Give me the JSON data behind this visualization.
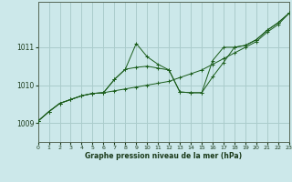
{
  "xlabel": "Graphe pression niveau de la mer (hPa)",
  "bg_color": "#cce8ea",
  "grid_color": "#aacccc",
  "line_color": "#1a5c1a",
  "xlim": [
    0,
    23
  ],
  "ylim": [
    1008.5,
    1012.2
  ],
  "yticks": [
    1009,
    1010,
    1011
  ],
  "xticks": [
    0,
    1,
    2,
    3,
    4,
    5,
    6,
    7,
    8,
    9,
    10,
    11,
    12,
    13,
    14,
    15,
    16,
    17,
    18,
    19,
    20,
    21,
    22,
    23
  ],
  "series1_x": [
    0,
    1,
    2,
    3,
    4,
    5,
    6,
    7,
    8,
    9,
    10,
    11,
    12,
    13,
    14,
    15,
    16,
    17,
    18,
    19,
    20,
    21,
    22,
    23
  ],
  "series1_y": [
    1009.05,
    1009.3,
    1009.52,
    1009.62,
    1009.72,
    1009.78,
    1009.8,
    1009.85,
    1009.9,
    1009.95,
    1010.0,
    1010.05,
    1010.1,
    1010.2,
    1010.3,
    1010.4,
    1010.55,
    1010.7,
    1010.85,
    1011.0,
    1011.15,
    1011.4,
    1011.6,
    1011.9
  ],
  "series2_x": [
    0,
    1,
    2,
    3,
    4,
    5,
    6,
    7,
    8,
    9,
    10,
    11,
    12,
    13,
    14,
    15,
    16,
    17,
    18,
    19,
    20,
    21,
    22,
    23
  ],
  "series2_y": [
    1009.05,
    1009.3,
    1009.52,
    1009.62,
    1009.72,
    1009.78,
    1009.8,
    1010.15,
    1010.42,
    1010.47,
    1010.5,
    1010.45,
    1010.4,
    1009.82,
    1009.8,
    1009.8,
    1010.22,
    1010.6,
    1011.0,
    1011.05,
    1011.2,
    1011.45,
    1011.65,
    1011.9
  ],
  "series3_x": [
    0,
    1,
    2,
    3,
    4,
    5,
    6,
    7,
    8,
    9,
    10,
    11,
    12,
    13,
    14,
    15,
    16,
    17,
    18,
    19,
    20,
    21,
    22,
    23
  ],
  "series3_y": [
    1009.05,
    1009.3,
    1009.52,
    1009.62,
    1009.72,
    1009.78,
    1009.8,
    1010.15,
    1010.42,
    1011.1,
    1010.75,
    1010.55,
    1010.4,
    1009.82,
    1009.8,
    1009.8,
    1010.65,
    1011.0,
    1011.0,
    1011.05,
    1011.2,
    1011.45,
    1011.65,
    1011.9
  ]
}
